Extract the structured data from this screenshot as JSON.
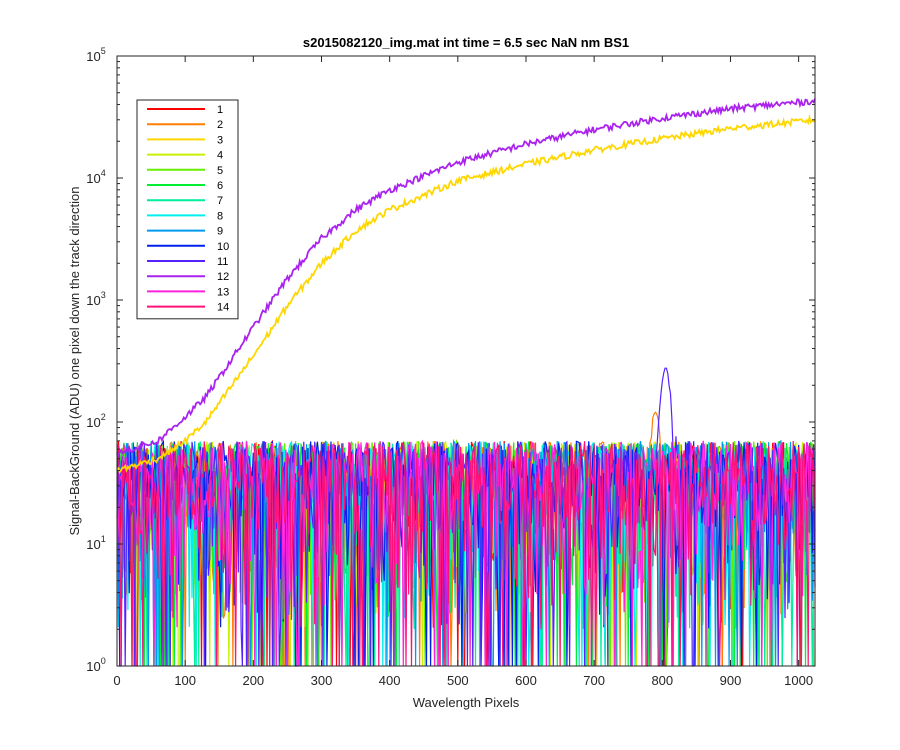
{
  "chart_data": {
    "type": "line",
    "title": "s2015082120_img.mat int time = 6.5 sec  NaN nm BS1",
    "xlabel": "Wavelength Pixels",
    "ylabel": "Signal-BackGround (ADU) one pixel down the track direction",
    "xlim": [
      0,
      1024
    ],
    "ylim": [
      1,
      100000
    ],
    "yscale": "log",
    "grid": false,
    "legend_position": "top-left",
    "x_ticks": [
      "0",
      "100",
      "200",
      "300",
      "400",
      "500",
      "600",
      "700",
      "800",
      "900",
      "1000"
    ],
    "y_ticks": [
      {
        "base": "10",
        "exp": "0"
      },
      {
        "base": "10",
        "exp": "1"
      },
      {
        "base": "10",
        "exp": "2"
      },
      {
        "base": "10",
        "exp": "3"
      },
      {
        "base": "10",
        "exp": "4"
      },
      {
        "base": "10",
        "exp": "5"
      }
    ],
    "noise_floor": {
      "typical_min": 2,
      "typical_max": 70
    },
    "series": [
      {
        "name": "1",
        "color": "#ff0000",
        "kind": "noise"
      },
      {
        "name": "2",
        "color": "#ff7f00",
        "kind": "noise",
        "peak": {
          "x": 790,
          "y": 120
        }
      },
      {
        "name": "3",
        "color": "#ffd700",
        "kind": "ramp",
        "x": [
          0,
          60,
          100,
          130,
          160,
          200,
          250,
          300,
          350,
          400,
          500,
          600,
          700,
          800,
          900,
          1024
        ],
        "values": [
          40,
          50,
          70,
          100,
          170,
          350,
          900,
          2000,
          3700,
          5500,
          9500,
          13000,
          17000,
          21000,
          25500,
          30000
        ]
      },
      {
        "name": "4",
        "color": "#c8f000",
        "kind": "noise"
      },
      {
        "name": "5",
        "color": "#66ee00",
        "kind": "noise"
      },
      {
        "name": "6",
        "color": "#00ee33",
        "kind": "noise"
      },
      {
        "name": "7",
        "color": "#00ee99",
        "kind": "noise"
      },
      {
        "name": "8",
        "color": "#00eeee",
        "kind": "noise"
      },
      {
        "name": "9",
        "color": "#0099ee",
        "kind": "noise"
      },
      {
        "name": "10",
        "color": "#0022ee",
        "kind": "noise"
      },
      {
        "name": "11",
        "color": "#5522ff",
        "kind": "noise",
        "peak": {
          "x": 805,
          "y": 280
        }
      },
      {
        "name": "12",
        "color": "#aa22ee",
        "kind": "ramp",
        "x": [
          0,
          60,
          100,
          130,
          160,
          200,
          250,
          300,
          350,
          400,
          500,
          600,
          700,
          800,
          900,
          1024
        ],
        "values": [
          55,
          70,
          110,
          160,
          280,
          600,
          1500,
          3200,
          5500,
          8000,
          13500,
          19000,
          25000,
          31000,
          37000,
          43000
        ]
      },
      {
        "name": "13",
        "color": "#ff22dd",
        "kind": "noise"
      },
      {
        "name": "14",
        "color": "#ff1177",
        "kind": "noise"
      }
    ]
  }
}
